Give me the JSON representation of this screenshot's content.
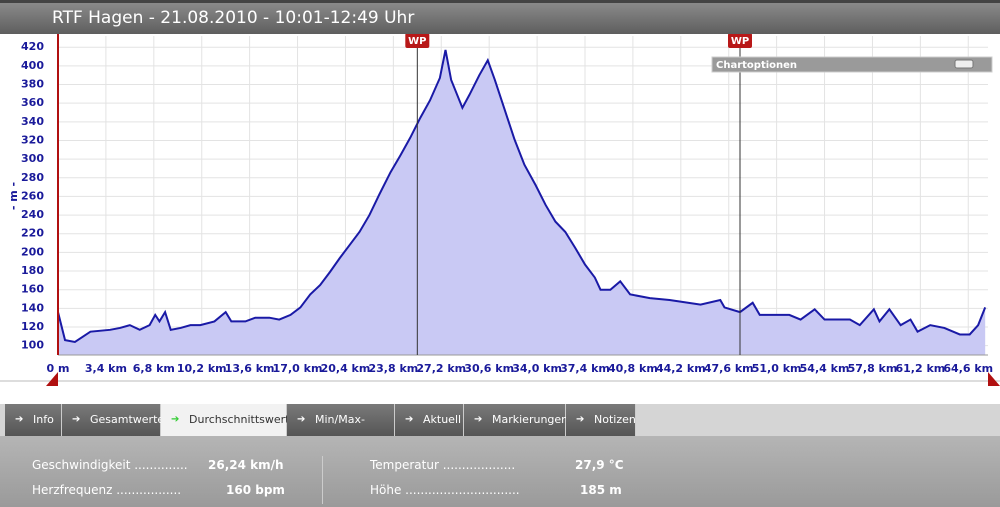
{
  "header": {
    "title": "RTF Hagen - 21.08.2010 - 10:01-12:49 Uhr"
  },
  "chart_options": "Chartoptionen",
  "chart_data": {
    "type": "area",
    "y_label": "- m -",
    "x": [
      0,
      0.5,
      1.2,
      2.3,
      3.7,
      4.4,
      5.1,
      5.8,
      6.5,
      6.9,
      7.2,
      7.6,
      8.0,
      8.7,
      9.4,
      10.1,
      11.1,
      11.9,
      12.3,
      13.3,
      14.0,
      15.0,
      15.7,
      16.5,
      17.2,
      17.9,
      18.6,
      19.3,
      20.0,
      20.7,
      21.4,
      22.1,
      22.8,
      23.6,
      24.3,
      25.0,
      25.7,
      26.4,
      27.1,
      27.5,
      27.9,
      28.7,
      29.2,
      29.9,
      30.5,
      31.0,
      31.7,
      32.4,
      33.1,
      33.9,
      34.6,
      35.3,
      36.0,
      36.7,
      37.4,
      38.1,
      38.5,
      39.2,
      39.9,
      40.6,
      42.0,
      43.4,
      45.6,
      47.0,
      47.3,
      48.4,
      49.3,
      49.8,
      51.9,
      52.7,
      53.7,
      54.4,
      56.2,
      56.9,
      57.9,
      58.3,
      59.0,
      59.8,
      60.5,
      61.0,
      61.9,
      62.9,
      64.0,
      64.7,
      65.3,
      65.8
    ],
    "values": [
      136,
      106,
      104,
      115,
      117,
      119,
      122,
      117,
      122,
      133,
      126,
      136,
      117,
      119,
      122,
      122,
      126,
      136,
      126,
      126,
      130,
      130,
      128,
      133,
      141,
      155,
      165,
      179,
      194,
      208,
      222,
      240,
      262,
      286,
      304,
      323,
      344,
      363,
      387,
      417,
      385,
      355,
      369,
      390,
      406,
      385,
      353,
      321,
      294,
      272,
      251,
      233,
      222,
      205,
      187,
      173,
      160,
      160,
      169,
      155,
      151,
      149,
      144,
      149,
      141,
      136,
      146,
      133,
      133,
      128,
      139,
      128,
      128,
      122,
      139,
      126,
      139,
      122,
      128,
      115,
      122,
      119,
      112,
      112,
      122,
      141
    ],
    "line_color": "#1a1aa6",
    "fill_color": "#c9c9f4",
    "xlim": [
      0,
      66
    ],
    "ylim": [
      90,
      432
    ],
    "xticks": [
      {
        "value": 0,
        "label": "0 m"
      },
      {
        "value": 3.4,
        "label": "3,4 km"
      },
      {
        "value": 6.8,
        "label": "6,8 km"
      },
      {
        "value": 10.2,
        "label": "10,2 km"
      },
      {
        "value": 13.6,
        "label": "13,6 km"
      },
      {
        "value": 17.0,
        "label": "17,0 km"
      },
      {
        "value": 20.4,
        "label": "20,4 km"
      },
      {
        "value": 23.8,
        "label": "23,8 km"
      },
      {
        "value": 27.2,
        "label": "27,2 km"
      },
      {
        "value": 30.6,
        "label": "30,6 km"
      },
      {
        "value": 34.0,
        "label": "34,0 km"
      },
      {
        "value": 37.4,
        "label": "37,4 km"
      },
      {
        "value": 40.8,
        "label": "40,8 km"
      },
      {
        "value": 44.2,
        "label": "44,2 km"
      },
      {
        "value": 47.6,
        "label": "47,6 km"
      },
      {
        "value": 51.0,
        "label": "51,0 km"
      },
      {
        "value": 54.4,
        "label": "54,4 km"
      },
      {
        "value": 57.8,
        "label": "57,8 km"
      },
      {
        "value": 61.2,
        "label": "61,2 km"
      },
      {
        "value": 64.6,
        "label": "64,6 km"
      }
    ],
    "yticks": [
      100,
      120,
      140,
      160,
      180,
      200,
      220,
      240,
      260,
      280,
      300,
      320,
      340,
      360,
      380,
      400,
      420
    ],
    "grid": true,
    "markers": [
      {
        "label": "WP",
        "x": 25.5
      },
      {
        "label": "WP",
        "x": 48.4
      }
    ]
  },
  "tabs": [
    "Info",
    "Gesamtwerte",
    "Durchschnittswerte",
    "Min/Max-Werte",
    "Aktuell",
    "Markierungen",
    "Notizen"
  ],
  "active_tab": "Durchschnittswerte",
  "stats": [
    {
      "label": "Geschwindigkeit ..............",
      "value": "26,24 km/h"
    },
    {
      "label": "Temperatur ...................",
      "value": "27,9 °C"
    },
    {
      "label": "Herzfrequenz .................",
      "value": "160 bpm"
    },
    {
      "label": "Höhe ..............................",
      "value": "185 m"
    }
  ]
}
